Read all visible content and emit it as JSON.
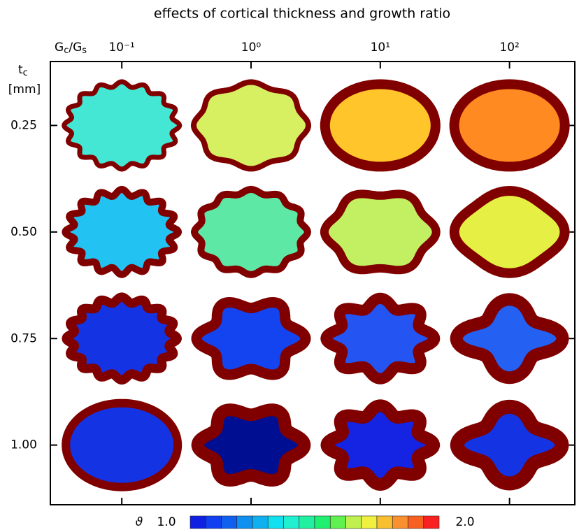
{
  "chart_data": {
    "type": "shape-grid",
    "title": "effects of cortical thickness and growth ratio",
    "xlabel": [
      "G",
      "c",
      "/G",
      "s"
    ],
    "ylabel": [
      "t",
      "c"
    ],
    "yunit": "[mm]",
    "xscale": "log",
    "xlim": [
      0.028,
      320
    ],
    "xticks": [
      {
        "value": 0.1,
        "label": "10⁻¹"
      },
      {
        "value": 1,
        "label": "10⁰"
      },
      {
        "value": 10,
        "label": "10¹"
      },
      {
        "value": 100,
        "label": "10²"
      }
    ],
    "ylim": [
      0.1,
      1.14
    ],
    "yticks": [
      0.25,
      {
        "value": 0.5,
        "label": "0.50"
      },
      0.75,
      {
        "value": 1,
        "label": "1.00"
      }
    ],
    "border_color": "#800000",
    "cell_colors": [
      [
        "#44e6d4",
        "#d6f062",
        "#ffc52a",
        "#ff8a22"
      ],
      [
        "#22c2f2",
        "#5ee8a6",
        "#c2f062",
        "#e6f044"
      ],
      [
        "#1434e4",
        "#1444f0",
        "#2454f2",
        "#2460f2"
      ],
      [
        "#1434e4",
        "#000e92",
        "#1424e2",
        "#1434e4"
      ]
    ],
    "colorbar": {
      "label": "ϑ",
      "min": {
        "value": 1,
        "label": "1.0"
      },
      "max": {
        "value": 2,
        "label": "2.0"
      },
      "colors": [
        "#1020e0",
        "#1040f0",
        "#1060f0",
        "#1090f0",
        "#10b0f0",
        "#10e0f0",
        "#20f0d0",
        "#20f0a0",
        "#20f070",
        "#60f050",
        "#c0f050",
        "#f0f040",
        "#f8c030",
        "#f89030",
        "#f86020",
        "#f82020"
      ]
    }
  }
}
